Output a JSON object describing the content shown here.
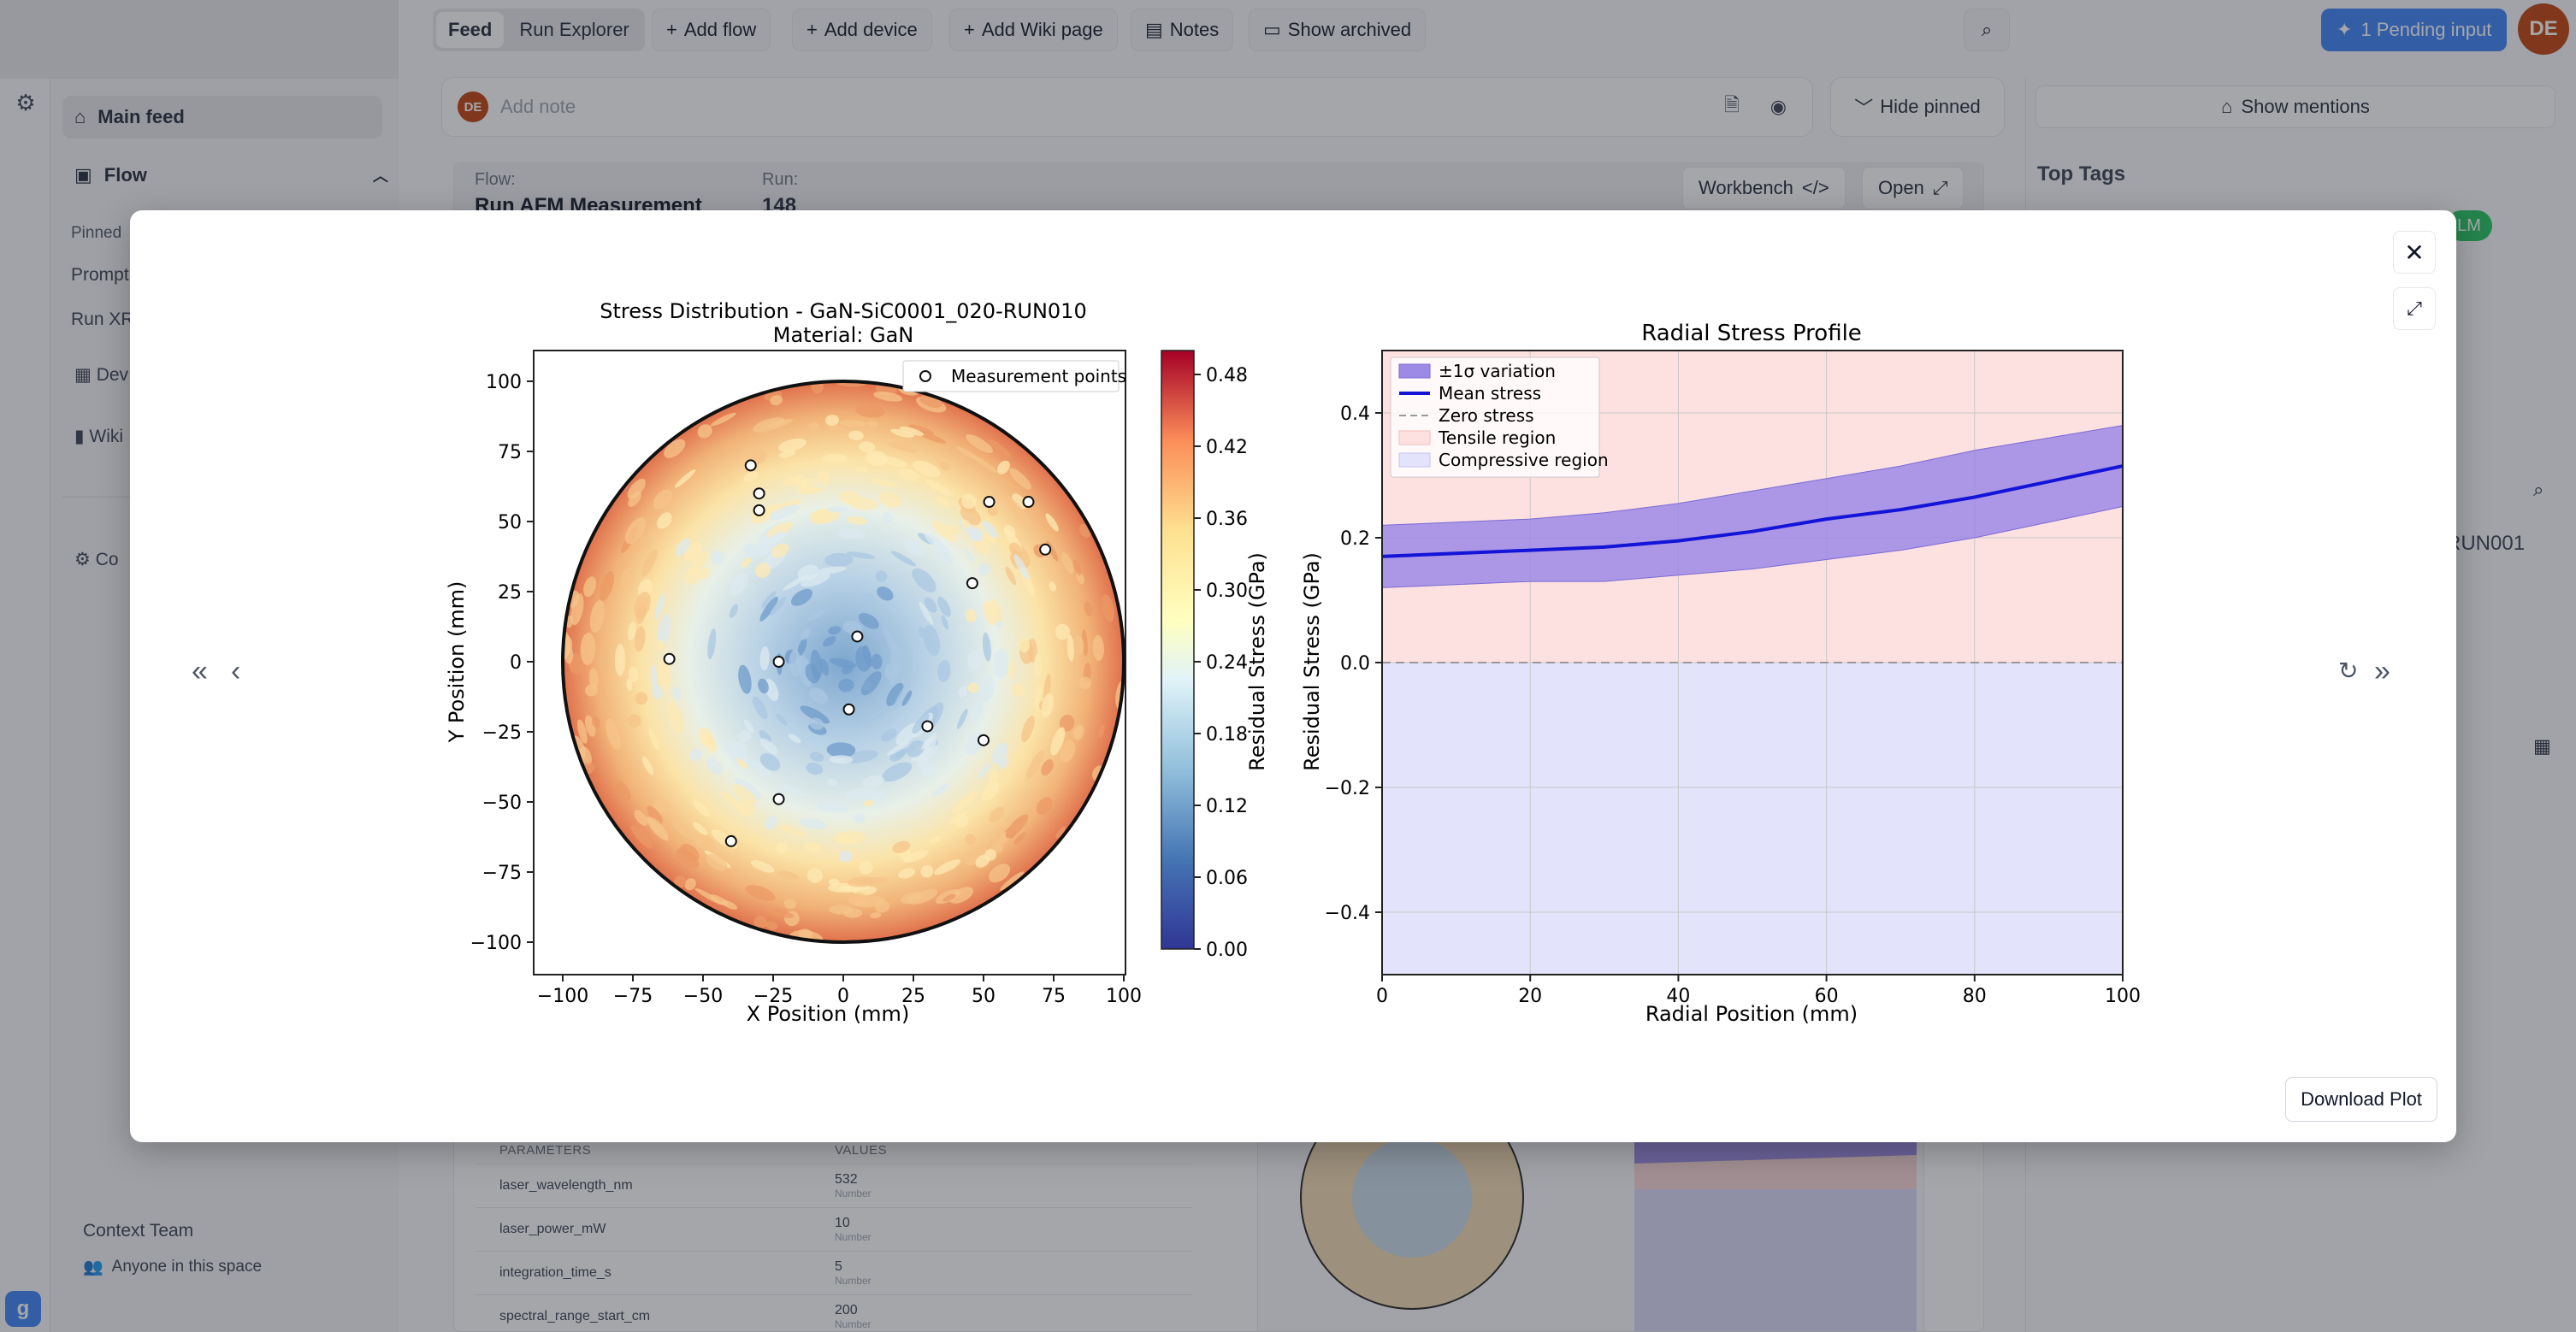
{
  "topbar": {
    "tabs": [
      "Feed",
      "Run Explorer"
    ],
    "add_flow": "Add flow",
    "add_device": "Add device",
    "add_wiki": "Add Wiki page",
    "notes": "Notes",
    "show_archived": "Show archived",
    "pending": "1 Pending input",
    "avatar": "DE"
  },
  "sidebar": {
    "main_feed": "Main feed",
    "flow": "Flow",
    "pinned": "Pinned",
    "items": [
      "Prompt",
      "Run XR",
      "Dev",
      "Wiki",
      "Co"
    ],
    "team": "Context Team",
    "space": "Anyone in this space"
  },
  "note": {
    "avatar": "DE",
    "placeholder": "Add note",
    "hide_pinned": "Hide pinned"
  },
  "right": {
    "show_mentions": "Show mentions",
    "top_tags": "Top Tags",
    "tag_fragment": "LM",
    "run_fragment": "RUN001"
  },
  "card": {
    "flow_label": "Flow:",
    "flow": "Run AFM Measurement",
    "run_label": "Run:",
    "run": "148",
    "workbench": "Workbench",
    "open": "Open"
  },
  "params": {
    "headers": [
      "PARAMETERS",
      "VALUES"
    ],
    "rows": [
      {
        "name": "laser_wavelength_nm",
        "value": "532",
        "type": "Number"
      },
      {
        "name": "laser_power_mW",
        "value": "10",
        "type": "Number"
      },
      {
        "name": "integration_time_s",
        "value": "5",
        "type": "Number"
      },
      {
        "name": "spectral_range_start_cm",
        "value": "200",
        "type": "Number"
      }
    ]
  },
  "modal": {
    "download": "Download Plot"
  },
  "chart_data": [
    {
      "type": "heatmap",
      "title": "Stress Distribution - GaN-SiC0001_020-RUN010",
      "subtitle": "Material: GaN",
      "xlabel": "X Position (mm)",
      "ylabel": "Y Position (mm)",
      "xlim": [
        -100,
        100
      ],
      "ylim": [
        -100,
        100
      ],
      "xticks": [
        -100,
        -75,
        -50,
        -25,
        0,
        25,
        50,
        75,
        100
      ],
      "yticks": [
        100,
        75,
        50,
        25,
        0,
        -25,
        -50,
        -75,
        -100
      ],
      "colorbar_label": "Residual Stress (GPa)",
      "colorbar_range": [
        0,
        0.5
      ],
      "colorbar_ticks": [
        "0.48",
        "0.42",
        "0.36",
        "0.30",
        "0.24",
        "0.18",
        "0.12",
        "0.06",
        "0.00"
      ],
      "legend": "Measurement points",
      "legend_position": "top-right",
      "measurement_points": [
        {
          "x": -33,
          "y": 70
        },
        {
          "x": -30,
          "y": 60
        },
        {
          "x": -30,
          "y": 54
        },
        {
          "x": 52,
          "y": 57
        },
        {
          "x": 66,
          "y": 57
        },
        {
          "x": 72,
          "y": 40
        },
        {
          "x": 46,
          "y": 28
        },
        {
          "x": 5,
          "y": 9
        },
        {
          "x": -62,
          "y": 1
        },
        {
          "x": -23,
          "y": 0
        },
        {
          "x": 2,
          "y": -17
        },
        {
          "x": 30,
          "y": -23
        },
        {
          "x": 50,
          "y": -28
        },
        {
          "x": -23,
          "y": -49
        },
        {
          "x": -40,
          "y": -64
        }
      ]
    },
    {
      "type": "area",
      "title": "Radial Stress Profile",
      "xlabel": "Radial Position (mm)",
      "ylabel": "Residual Stress (GPa)",
      "xlim": [
        0,
        100
      ],
      "ylim": [
        -0.5,
        0.5
      ],
      "xticks": [
        "0",
        "20",
        "40",
        "60",
        "80",
        "100"
      ],
      "yticks": [
        "0.4",
        "0.2",
        "0.0",
        "−0.2",
        "−0.4"
      ],
      "grid": true,
      "legend_position": "top-left",
      "series": [
        {
          "name": "Mean stress",
          "x": [
            0,
            10,
            20,
            30,
            40,
            50,
            60,
            70,
            80,
            90,
            100
          ],
          "values": [
            0.17,
            0.175,
            0.18,
            0.185,
            0.195,
            0.21,
            0.23,
            0.245,
            0.265,
            0.29,
            0.315
          ]
        },
        {
          "name": "±1σ variation",
          "x": [
            0,
            10,
            20,
            30,
            40,
            50,
            60,
            70,
            80,
            90,
            100
          ],
          "lower": [
            0.12,
            0.125,
            0.13,
            0.13,
            0.14,
            0.15,
            0.165,
            0.18,
            0.2,
            0.225,
            0.25
          ],
          "upper": [
            0.22,
            0.225,
            0.23,
            0.24,
            0.255,
            0.275,
            0.295,
            0.315,
            0.34,
            0.36,
            0.38
          ]
        }
      ],
      "reference_line": {
        "name": "Zero stress",
        "y": 0
      },
      "regions": [
        {
          "name": "Tensile region",
          "range": [
            0,
            0.5
          ],
          "color": "#fde0e0"
        },
        {
          "name": "Compressive region",
          "range": [
            -0.5,
            0
          ],
          "color": "#e3e3fb"
        }
      ]
    }
  ]
}
